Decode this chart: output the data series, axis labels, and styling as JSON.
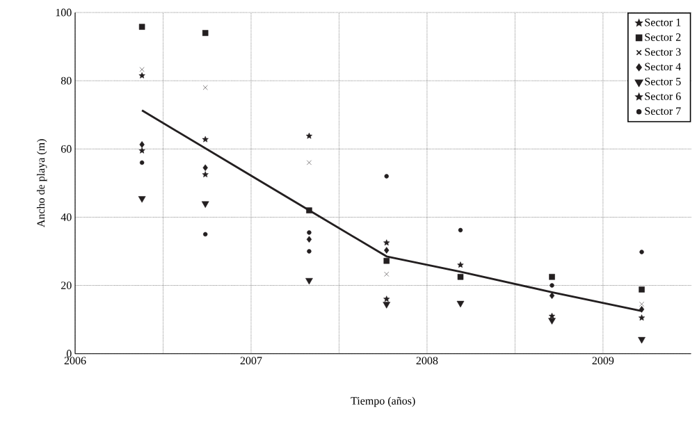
{
  "chart_data": {
    "type": "scatter",
    "xlabel": "Tiempo (años)",
    "ylabel": "Ancho de playa (m)",
    "xlim": [
      2006,
      2009.5
    ],
    "ylim": [
      0,
      100
    ],
    "xticks": [
      2006,
      {
        "value": 2006.5,
        "label": null
      },
      2007,
      {
        "value": 2007.5,
        "label": null
      },
      2008,
      {
        "value": 2008.5,
        "label": null
      },
      2009
    ],
    "yticks": [
      0,
      20,
      40,
      60,
      80,
      100
    ],
    "grid": true,
    "legend": "top right",
    "x": [
      2006.38,
      2006.74,
      2007.33,
      2007.77,
      2008.19,
      2008.71,
      2009.22
    ],
    "series": [
      {
        "name": "Sector 1",
        "color": "#231f20",
        "marker": "star",
        "values": [
          81.5,
          62.8,
          63.8,
          16,
          26,
          11,
          10.5
        ]
      },
      {
        "name": "Sector 2",
        "color": "#231f20",
        "marker": "square",
        "values": [
          95.8,
          94,
          42,
          27.2,
          22.5,
          22.5,
          18.8
        ]
      },
      {
        "name": "Sector 3",
        "color": "#231f20",
        "marker": "cross",
        "values": [
          83.3,
          78,
          56,
          23.3,
          null,
          null,
          14.5
        ]
      },
      {
        "name": "Sector 4",
        "color": "#231f20",
        "marker": "diamond",
        "values": [
          61.3,
          54.5,
          33.5,
          30.3,
          null,
          17,
          13
        ]
      },
      {
        "name": "Sector 5",
        "color": "#231f20",
        "marker": "triangle",
        "values": [
          45.5,
          44,
          21.5,
          14.5,
          14.8,
          9.8,
          4.2
        ]
      },
      {
        "name": "Sector 6",
        "color": "#231f20",
        "marker": "star",
        "values": [
          59.5,
          52.5,
          null,
          32.5,
          null,
          null,
          null
        ]
      },
      {
        "name": "Sector 7",
        "color": "#231f20",
        "marker": "circle",
        "x": [
          2006.38,
          2006.74,
          2007.33,
          2007.33,
          2007.77,
          2008.19,
          2008.71,
          2009.22
        ],
        "values": [
          56,
          35,
          35.5,
          30,
          52,
          36.2,
          20,
          29.8
        ]
      },
      {
        "type": "line",
        "color": "#231f20",
        "marker": "none",
        "x": [
          2006.38,
          2007.33,
          2007.77,
          2008.19,
          2008.71,
          2009.22
        ],
        "values": [
          71.3,
          42,
          28.5,
          24,
          18,
          12.5
        ]
      }
    ]
  }
}
